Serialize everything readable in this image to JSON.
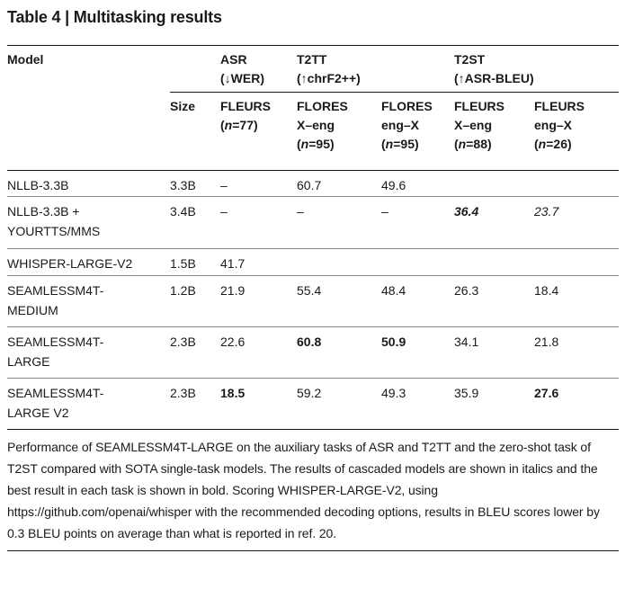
{
  "title": "Table 4 | Multitasking results",
  "table": {
    "header": {
      "model": "Model",
      "size": "Size",
      "groups": [
        {
          "id": "asr",
          "label": "ASR\n(↓WER)"
        },
        {
          "id": "t2tt",
          "label": "T2TT\n(↑chrF2++)"
        },
        {
          "id": "t2st",
          "label": "T2ST\n(↑ASR-BLEU)"
        }
      ],
      "cols": [
        "FLEURS\n(n=77)",
        "FLORES\nX–eng\n(n=95)",
        "FLORES\neng–X\n(n=95)",
        "FLEURS\nX–eng\n(n=88)",
        "FLEURS\neng–X\n(n=26)"
      ]
    },
    "rows": [
      {
        "model": "NLLB-3.3B",
        "size": "3.3B",
        "cells": [
          {
            "v": "–"
          },
          {
            "v": "60.7"
          },
          {
            "v": "49.6"
          },
          {
            "v": ""
          },
          {
            "v": ""
          }
        ]
      },
      {
        "model": "NLLB-3.3B +\nYOURTTS/MMS",
        "size": "3.4B",
        "cells": [
          {
            "v": "–"
          },
          {
            "v": "–"
          },
          {
            "v": "–"
          },
          {
            "v": "36.4",
            "bold": true,
            "italic": true
          },
          {
            "v": "23.7",
            "italic": true
          }
        ]
      },
      {
        "model": "WHISPER-LARGE-V2",
        "size": "1.5B",
        "cells": [
          {
            "v": "41.7"
          },
          {
            "v": ""
          },
          {
            "v": ""
          },
          {
            "v": ""
          },
          {
            "v": ""
          }
        ]
      },
      {
        "model": "SEAMLESSM4T-\nMEDIUM",
        "size": "1.2B",
        "cells": [
          {
            "v": "21.9"
          },
          {
            "v": "55.4"
          },
          {
            "v": "48.4"
          },
          {
            "v": "26.3"
          },
          {
            "v": "18.4"
          }
        ]
      },
      {
        "model": "SEAMLESSM4T-\nLARGE",
        "size": "2.3B",
        "cells": [
          {
            "v": "22.6"
          },
          {
            "v": "60.8",
            "bold": true
          },
          {
            "v": "50.9",
            "bold": true
          },
          {
            "v": "34.1"
          },
          {
            "v": "21.8"
          }
        ]
      },
      {
        "model": "SEAMLESSM4T-\nLARGE V2",
        "size": "2.3B",
        "cells": [
          {
            "v": "18.5",
            "bold": true
          },
          {
            "v": "59.2"
          },
          {
            "v": "49.3"
          },
          {
            "v": "35.9"
          },
          {
            "v": "27.6",
            "bold": true
          }
        ]
      }
    ]
  },
  "caption": "Performance of SEAMLESSM4T-LARGE on the auxiliary tasks of ASR and T2TT and the zero-shot task of T2ST compared with SOTA single-task models. The results of cascaded models are shown in italics and the best result in each task is shown in bold. Scoring WHISPER-LARGE-V2, using https://github.com/openai/whisper with the recommended decoding options, results in BLEU scores lower by 0.3 BLEU points on average than what is reported in ref. 20."
}
